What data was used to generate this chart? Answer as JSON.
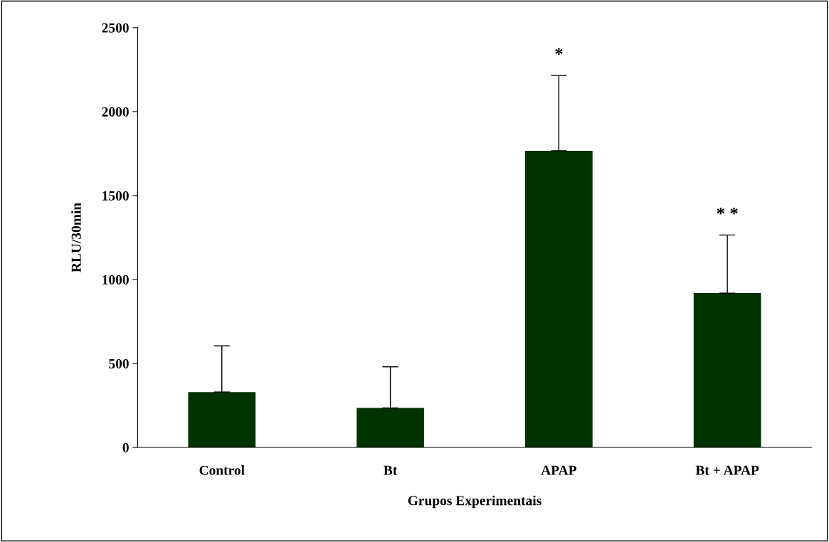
{
  "chart_data": {
    "type": "bar",
    "xlabel": "Grupos Experimentais",
    "ylabel": "RLU/30min",
    "categories": [
      "Control",
      "Bt",
      "APAP",
      "Bt + APAP"
    ],
    "values": [
      330,
      235,
      1767,
      919
    ],
    "errors": [
      [
        330,
        605
      ],
      [
        235,
        480
      ],
      [
        1767,
        2215
      ],
      [
        919,
        1265
      ]
    ],
    "color": "#003300",
    "ylim": [
      0,
      2500
    ],
    "yticks": [
      0,
      500,
      1000,
      1500,
      2000,
      2500
    ],
    "grid": false,
    "legend": false,
    "annotations": [
      {
        "text": "*",
        "x": "APAP",
        "y": 2215
      },
      {
        "text": "* *",
        "x": "Bt + APAP",
        "y": 1265
      }
    ]
  }
}
